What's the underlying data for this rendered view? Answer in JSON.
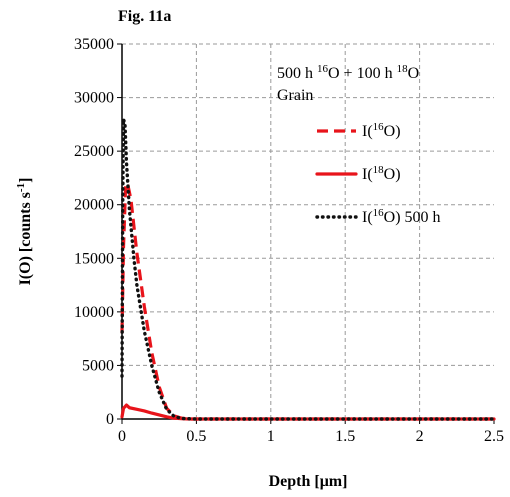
{
  "figure_label": "Fig. 11a",
  "chart_data": {
    "type": "line",
    "title": "Fig. 11a",
    "xlabel": "Depth [μm]",
    "ylabel": "I(O) [counts s-1]",
    "xlim": [
      0,
      2.5
    ],
    "ylim": [
      0,
      35000
    ],
    "x_ticks": [
      "0",
      "0.5",
      "1",
      "1.5",
      "2",
      "2.5"
    ],
    "y_ticks": [
      "0",
      "5000",
      "10000",
      "15000",
      "20000",
      "25000",
      "30000",
      "35000"
    ],
    "grid": "dashed",
    "annotation_lines": [
      "500 h 16O + 100 h 18O",
      "Grain"
    ],
    "legend_position": "upper-right",
    "series": [
      {
        "name": "I(16O)",
        "color": "#e8141b",
        "style": "dashed",
        "x": [
          0.0,
          0.01,
          0.025,
          0.04,
          0.06,
          0.1,
          0.15,
          0.2,
          0.25,
          0.3,
          0.35,
          0.4,
          0.45,
          0.5,
          1.0,
          1.5,
          2.0,
          2.5
        ],
        "y": [
          8000,
          16000,
          22000,
          21800,
          20500,
          15500,
          10500,
          6200,
          3000,
          1000,
          300,
          80,
          0,
          0,
          0,
          0,
          0,
          0
        ]
      },
      {
        "name": "I(18O)",
        "color": "#e8141b",
        "style": "solid",
        "x": [
          0.0,
          0.01,
          0.03,
          0.05,
          0.1,
          0.15,
          0.2,
          0.25,
          0.3,
          0.35,
          0.4,
          0.45,
          0.5,
          1.0,
          1.5,
          2.0,
          2.5
        ],
        "y": [
          200,
          1000,
          1300,
          1050,
          900,
          750,
          550,
          380,
          200,
          80,
          30,
          0,
          0,
          0,
          0,
          0,
          0
        ]
      },
      {
        "name": "I(16O) 500 h",
        "color": "#111111",
        "style": "dotted",
        "x": [
          0.0,
          0.005,
          0.01,
          0.02,
          0.03,
          0.05,
          0.08,
          0.1,
          0.15,
          0.2,
          0.25,
          0.3,
          0.35,
          0.4,
          0.5,
          1.0,
          1.5,
          2.0,
          2.5
        ],
        "y": [
          4000,
          20000,
          28000,
          27500,
          24000,
          19500,
          15000,
          12500,
          8200,
          5000,
          2500,
          900,
          250,
          50,
          0,
          0,
          0,
          0,
          0
        ]
      }
    ]
  }
}
